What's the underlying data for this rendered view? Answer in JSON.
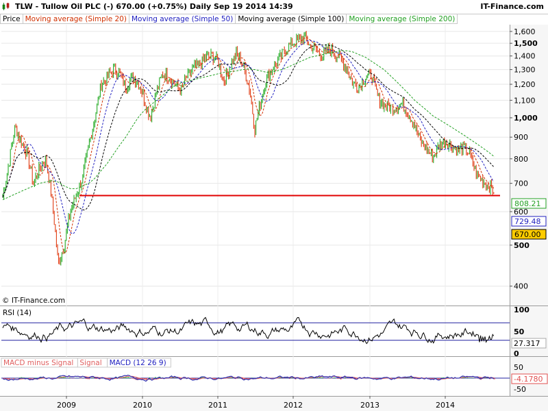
{
  "header": {
    "title": "TLW - Tullow Oil PLC (-)   670.00 (+0.75%)   Daily   Sep 19 2014 14:39",
    "site": "IT-Finance.com"
  },
  "legend": [
    {
      "label": "Price",
      "color": "#000000"
    },
    {
      "label": "Moving average (Simple 20)",
      "color": "#d03000"
    },
    {
      "label": "Moving average (Simple 50)",
      "color": "#2020c0"
    },
    {
      "label": "Moving average (Simple 100)",
      "color": "#000000"
    },
    {
      "label": "Moving average (Simple 200)",
      "color": "#22a022"
    }
  ],
  "watermark": "© IT-Finance.com",
  "price_panel": {
    "y_ticks": [
      "400",
      "500",
      "600",
      "700",
      "800",
      "900",
      "1,000",
      "1,100",
      "1,200",
      "1,300",
      "1,400",
      "1,500",
      "1,600"
    ],
    "y_tick_values": [
      400,
      500,
      600,
      700,
      800,
      900,
      1000,
      1100,
      1200,
      1300,
      1400,
      1500,
      1600
    ],
    "bold_ticks": [
      500,
      1000,
      1500
    ],
    "ylim": [
      360,
      1660
    ],
    "scale": "log",
    "support_level": 655,
    "support_color": "#e00000",
    "value_labels": [
      {
        "text": "808.21",
        "value": 808.21,
        "color": "#22a022",
        "bg": "#ffffff"
      },
      {
        "text": "729.48",
        "value": 729.48,
        "color": "#2020c0",
        "bg": "#ffffff"
      },
      {
        "text": "670.00",
        "value": 670.0,
        "color": "#000000",
        "bg": "#ffcc00"
      }
    ]
  },
  "rsi_panel": {
    "label": "RSI (14)",
    "y_ticks": [
      "100",
      "50",
      "0"
    ],
    "levels": [
      70,
      30
    ],
    "current": "27.317"
  },
  "macd_panel": {
    "legend": [
      {
        "label": "MACD minus Signal",
        "color": "#e06060"
      },
      {
        "label": "Signal",
        "color": "#e06060"
      },
      {
        "label": "MACD (12 26 9)",
        "color": "#2020c0"
      }
    ],
    "y_ticks": [
      "50",
      "0",
      "-50"
    ],
    "current": "-4.1780"
  },
  "x_axis": {
    "labels": [
      "2009",
      "2010",
      "2011",
      "2012",
      "2013",
      "2014"
    ]
  },
  "chart_data": {
    "type": "line",
    "title": "TLW - Tullow Oil PLC (-)",
    "xlabel": "",
    "ylabel": "",
    "x": [
      "2008-01",
      "2008-02",
      "2008-03",
      "2008-04",
      "2008-05",
      "2008-06",
      "2008-07",
      "2008-08",
      "2008-09",
      "2008-10",
      "2008-11",
      "2008-12",
      "2009-01",
      "2009-02",
      "2009-03",
      "2009-04",
      "2009-05",
      "2009-06",
      "2009-07",
      "2009-08",
      "2009-09",
      "2009-10",
      "2009-11",
      "2009-12",
      "2010-01",
      "2010-02",
      "2010-03",
      "2010-04",
      "2010-05",
      "2010-06",
      "2010-07",
      "2010-08",
      "2010-09",
      "2010-10",
      "2010-11",
      "2010-12",
      "2011-01",
      "2011-02",
      "2011-03",
      "2011-04",
      "2011-05",
      "2011-06",
      "2011-07",
      "2011-08",
      "2011-09",
      "2011-10",
      "2011-11",
      "2011-12",
      "2012-01",
      "2012-02",
      "2012-03",
      "2012-04",
      "2012-05",
      "2012-06",
      "2012-07",
      "2012-08",
      "2012-09",
      "2012-10",
      "2012-11",
      "2012-12",
      "2013-01",
      "2013-02",
      "2013-03",
      "2013-04",
      "2013-05",
      "2013-06",
      "2013-07",
      "2013-08",
      "2013-09",
      "2013-10",
      "2013-11",
      "2013-12",
      "2014-01",
      "2014-02",
      "2014-03",
      "2014-04",
      "2014-05",
      "2014-06",
      "2014-07",
      "2014-08",
      "2014-09"
    ],
    "series": [
      {
        "name": "Price",
        "values": [
          650,
          780,
          950,
          880,
          820,
          700,
          760,
          800,
          640,
          450,
          500,
          600,
          660,
          720,
          860,
          1000,
          1200,
          1250,
          1300,
          1270,
          1180,
          1250,
          1220,
          1110,
          1000,
          1150,
          1270,
          1250,
          1200,
          1160,
          1250,
          1310,
          1330,
          1390,
          1400,
          1360,
          1220,
          1320,
          1420,
          1340,
          1200,
          940,
          1100,
          1250,
          1320,
          1380,
          1450,
          1500,
          1520,
          1560,
          1480,
          1450,
          1400,
          1460,
          1420,
          1380,
          1300,
          1200,
          1180,
          1250,
          1260,
          1120,
          1070,
          1060,
          1060,
          1080,
          1020,
          960,
          880,
          840,
          810,
          860,
          880,
          860,
          840,
          850,
          820,
          740,
          710,
          690,
          670
        ]
      },
      {
        "name": "Moving average (Simple 200)",
        "values": [
          640,
          650,
          660,
          670,
          680,
          690,
          700,
          705,
          710,
          705,
          690,
          680,
          680,
          690,
          700,
          720,
          750,
          780,
          820,
          860,
          900,
          950,
          1000,
          1040,
          1070,
          1100,
          1130,
          1160,
          1190,
          1210,
          1220,
          1230,
          1240,
          1250,
          1260,
          1270,
          1280,
          1285,
          1290,
          1300,
          1305,
          1300,
          1290,
          1280,
          1285,
          1295,
          1310,
          1330,
          1350,
          1370,
          1390,
          1400,
          1410,
          1420,
          1430,
          1440,
          1440,
          1430,
          1410,
          1390,
          1360,
          1330,
          1300,
          1260,
          1220,
          1180,
          1140,
          1100,
          1070,
          1040,
          1010,
          990,
          970,
          950,
          930,
          910,
          890,
          870,
          850,
          830,
          808
        ]
      }
    ]
  }
}
